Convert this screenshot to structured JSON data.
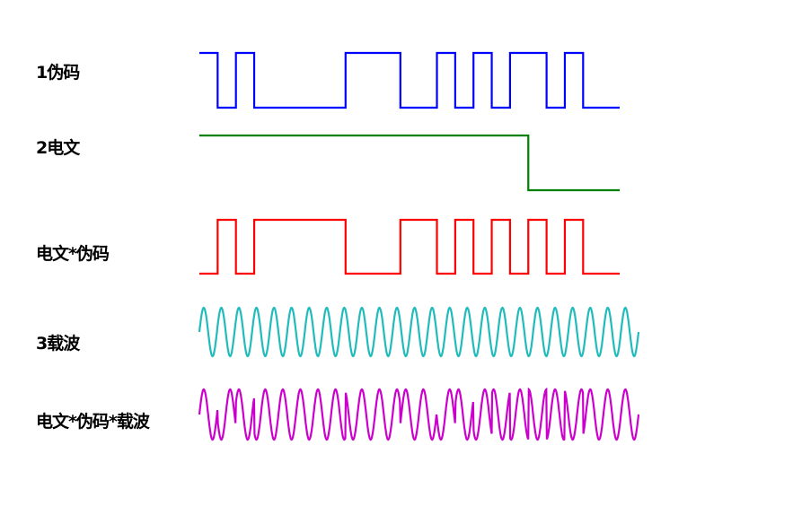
{
  "labels": {
    "pn_code": "1伪码",
    "message": "2电文",
    "product": "电文*伪码",
    "carrier": "3载波",
    "modulated": "电文*伪码*载波"
  },
  "colors": {
    "pn_code": "#0000ff",
    "message": "#008000",
    "product": "#ff0000",
    "carrier": "#22bbbb",
    "modulated": "#cc00cc"
  },
  "signals": {
    "pn_bits": [
      1,
      0,
      1,
      0,
      0,
      0,
      0,
      0,
      1,
      1,
      1,
      0,
      0,
      1,
      0,
      1,
      0,
      1,
      1,
      0,
      1,
      0,
      0
    ],
    "message_bits": [
      1,
      1,
      1,
      1,
      1,
      1,
      1,
      1,
      1,
      1,
      1,
      1,
      1,
      1,
      1,
      1,
      1,
      1,
      0,
      0,
      0,
      0,
      0
    ],
    "carrier_cycles": 25
  }
}
